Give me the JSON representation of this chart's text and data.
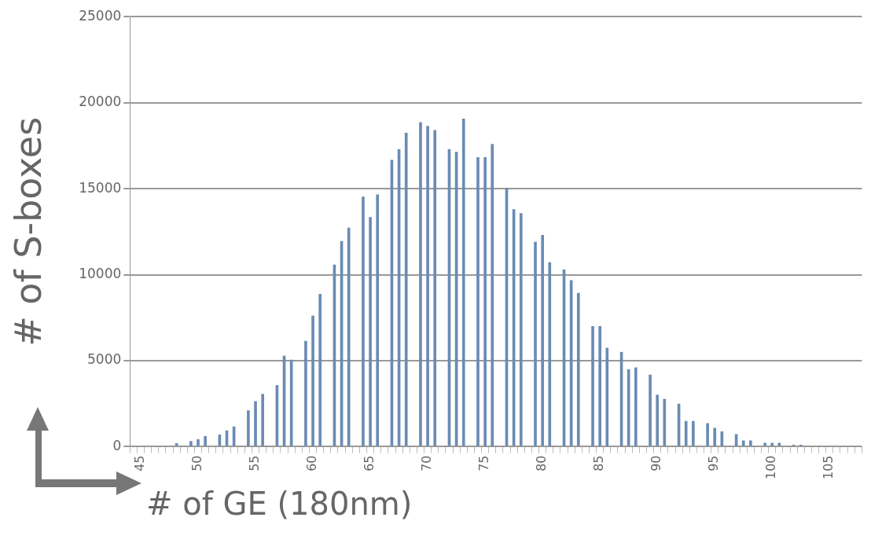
{
  "chart_data": {
    "type": "bar",
    "xlabel": "# of GE (180nm)",
    "ylabel": "# of S-boxes",
    "categories": [
      null,
      "45",
      null,
      null,
      null,
      null,
      null,
      null,
      null,
      "50",
      null,
      null,
      null,
      null,
      null,
      null,
      null,
      "55",
      null,
      null,
      null,
      null,
      null,
      null,
      null,
      "60",
      null,
      null,
      null,
      null,
      null,
      null,
      null,
      "65",
      null,
      null,
      null,
      null,
      null,
      null,
      null,
      "70",
      null,
      null,
      null,
      null,
      null,
      null,
      null,
      "75",
      null,
      null,
      null,
      null,
      null,
      null,
      null,
      "80",
      null,
      null,
      null,
      null,
      null,
      null,
      null,
      "85",
      null,
      null,
      null,
      null,
      null,
      null,
      null,
      "90",
      null,
      null,
      null,
      null,
      null,
      null,
      null,
      "95",
      null,
      null,
      null,
      null,
      null,
      null,
      null,
      "100",
      null,
      null,
      null,
      null,
      null,
      null,
      null,
      "105",
      null,
      null,
      null,
      null
    ],
    "values": [
      0,
      0,
      0,
      0,
      0,
      0,
      200,
      0,
      330,
      430,
      620,
      0,
      710,
      945,
      1180,
      0,
      2110,
      2650,
      3070,
      0,
      3580,
      5290,
      5060,
      0,
      6150,
      7620,
      8880,
      0,
      10590,
      11960,
      12730,
      0,
      14540,
      13350,
      14660,
      0,
      16670,
      17300,
      18250,
      0,
      18870,
      18650,
      18410,
      0,
      17300,
      17140,
      19070,
      0,
      16830,
      16830,
      17600,
      0,
      15050,
      13810,
      13580,
      0,
      11910,
      12310,
      10720,
      0,
      10300,
      9680,
      8940,
      0,
      7010,
      7010,
      5750,
      0,
      5510,
      4500,
      4610,
      0,
      4190,
      3020,
      2780,
      0,
      2500,
      1490,
      1490,
      0,
      1370,
      1090,
      890,
      0,
      730,
      360,
      360,
      0,
      230,
      230,
      230,
      0,
      110,
      110,
      0,
      0,
      0,
      0,
      0,
      0,
      0,
      0
    ],
    "color": "#6a8bb3",
    "ylim": [
      0,
      25000
    ],
    "yticks": [
      0,
      5000,
      10000,
      15000,
      20000,
      25000
    ],
    "grid": "y",
    "legend": false
  }
}
